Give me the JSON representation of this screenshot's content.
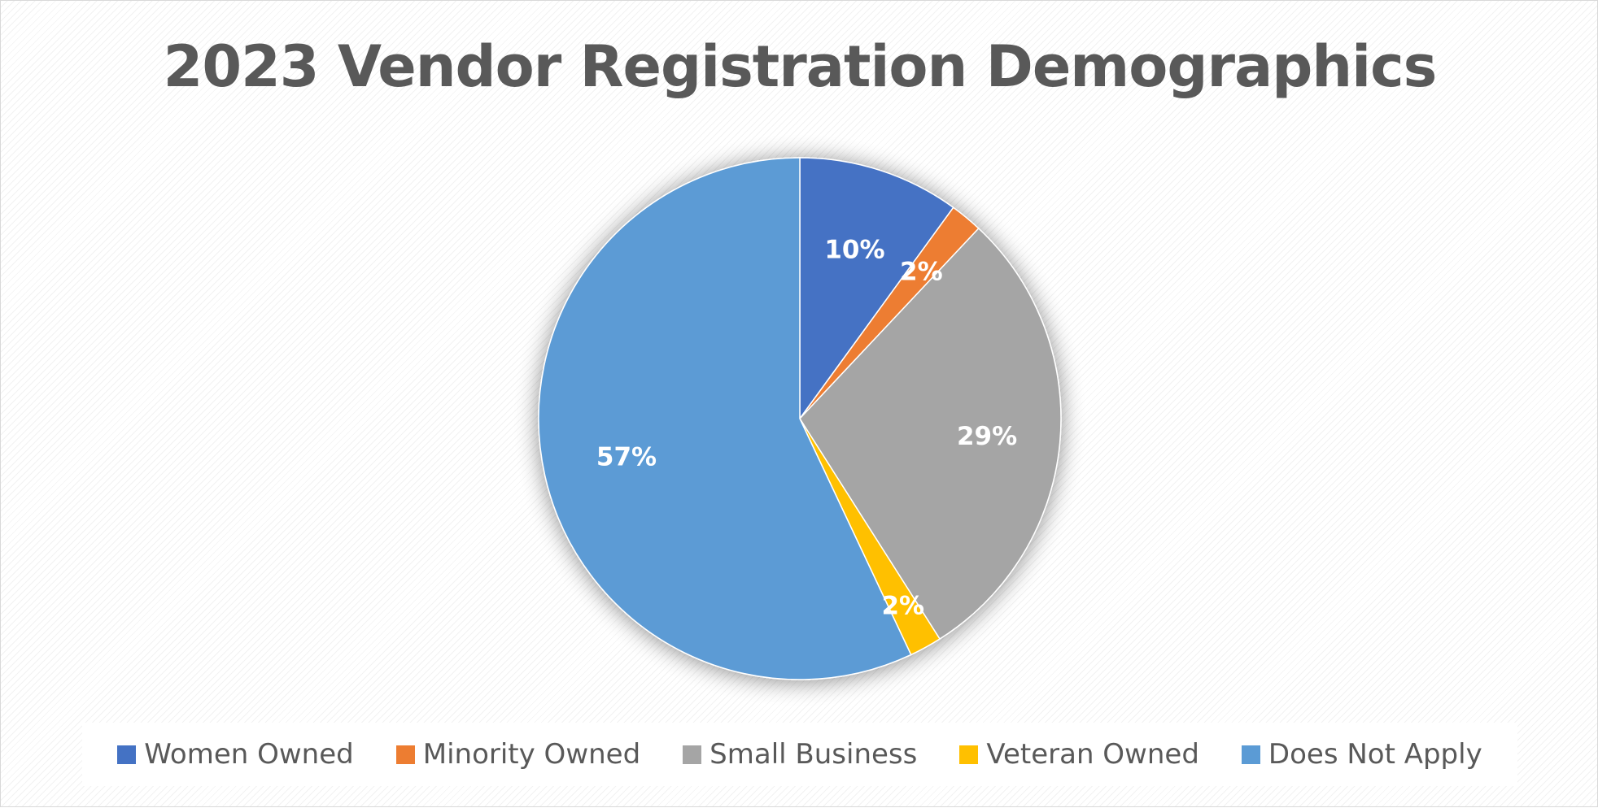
{
  "chart_data": {
    "type": "pie",
    "title": "2023 Vendor Registration Demographics",
    "slices": [
      {
        "name": "Women Owned",
        "value": 10,
        "label": "10%",
        "color": "#4472C4"
      },
      {
        "name": "Minority Owned",
        "value": 2,
        "label": "2%",
        "color": "#ED7D31"
      },
      {
        "name": "Small Business",
        "value": 29,
        "label": "29%",
        "color": "#A5A5A5"
      },
      {
        "name": "Veteran Owned",
        "value": 2,
        "label": "2%",
        "color": "#FFC000"
      },
      {
        "name": "Does Not Apply",
        "value": 57,
        "label": "57%",
        "color": "#5B9BD5"
      }
    ],
    "start_angle": "12 o'clock",
    "direction": "clockwise",
    "legend_position": "bottom",
    "data_labels": "inside"
  }
}
